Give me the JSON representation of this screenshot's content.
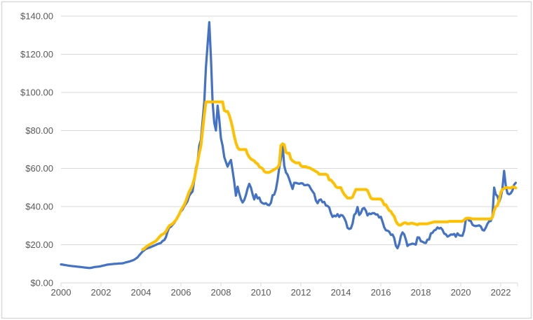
{
  "chart_data": {
    "type": "line",
    "title": "",
    "xlabel": "",
    "ylabel": "",
    "grid": "horizontal",
    "legend": "none",
    "x_axis": {
      "min": 2000,
      "max": 2022.84,
      "tick_years": [
        2000,
        2002,
        2004,
        2006,
        2008,
        2010,
        2012,
        2014,
        2016,
        2018,
        2020,
        2022
      ],
      "tick_labels": [
        "2000",
        "2002",
        "2004",
        "2006",
        "2008",
        "2010",
        "2012",
        "2014",
        "2016",
        "2018",
        "2020",
        "2022"
      ],
      "end_tick": true
    },
    "y_axis": {
      "min": 0,
      "max": 140,
      "tick_step": 20,
      "tick_values": [
        0,
        20,
        40,
        60,
        80,
        100,
        120,
        140
      ],
      "tick_labels": [
        "$0.00",
        "$20.00",
        "$40.00",
        "$60.00",
        "$80.00",
        "$100.00",
        "$120.00",
        "$140.00"
      ]
    },
    "colors": {
      "grid": "#D9D9D9",
      "axis": "#D9D9D9",
      "border": "#D9D9D9",
      "tick_label": "#595959",
      "blue_series": "#4472C4",
      "yellow_series": "#FFC000"
    },
    "series": [
      {
        "name": "blue-series",
        "color_key": "blue_series",
        "stroke_width": 3.25,
        "frequency": "monthly",
        "start_year": 2000,
        "start_month": 1,
        "values": [
          9.7,
          9.6,
          9.4,
          9.3,
          9.1,
          9.0,
          8.9,
          8.8,
          8.7,
          8.6,
          8.5,
          8.4,
          8.3,
          8.2,
          8.1,
          8.0,
          7.9,
          7.8,
          7.9,
          8.1,
          8.3,
          8.4,
          8.5,
          8.6,
          8.8,
          9.0,
          9.2,
          9.4,
          9.6,
          9.7,
          9.8,
          9.9,
          10.0,
          10.0,
          10.1,
          10.2,
          10.2,
          10.3,
          10.5,
          10.8,
          11.0,
          11.2,
          11.5,
          11.8,
          12.2,
          12.8,
          13.5,
          14.5,
          15.5,
          16.5,
          17.2,
          17.8,
          18.2,
          18.5,
          18.8,
          19.2,
          19.6,
          20.0,
          20.4,
          20.7,
          21.0,
          22.0,
          22.5,
          24.0,
          27.0,
          29.0,
          29.5,
          30.5,
          31.5,
          33.0,
          34.5,
          36.3,
          37.5,
          38.5,
          40.3,
          41.5,
          43.0,
          45.8,
          47.0,
          48.0,
          54.0,
          60.3,
          63.5,
          72.0,
          75.0,
          85.0,
          95.0,
          113.0,
          125.0,
          136.8,
          118.0,
          95.0,
          84.0,
          80.0,
          93.0,
          86.0,
          76.0,
          72.0,
          66.0,
          63.5,
          61.0,
          63.0,
          64.5,
          59.0,
          53.0,
          45.8,
          50.5,
          47.0,
          44.0,
          42.2,
          43.5,
          46.0,
          49.5,
          52.0,
          50.0,
          46.5,
          43.8,
          46.5,
          44.3,
          44.8,
          42.5,
          41.8,
          41.5,
          41.8,
          41.0,
          40.8,
          42.0,
          46.0,
          46.3,
          49.0,
          54.0,
          60.5,
          65.0,
          72.5,
          61.5,
          58.0,
          56.8,
          54.5,
          51.8,
          49.3,
          52.5,
          52.5,
          52.2,
          52.0,
          52.3,
          52.2,
          51.3,
          51.3,
          51.5,
          51.0,
          49.3,
          48.0,
          46.8,
          43.3,
          41.8,
          43.5,
          43.8,
          42.3,
          42.5,
          40.6,
          40.4,
          39.6,
          36.6,
          34.6,
          35.3,
          34.9,
          36.1,
          34.6,
          35.6,
          35.4,
          34.1,
          32.1,
          28.9,
          28.3,
          28.6,
          31.1,
          35.6,
          36.6,
          39.8,
          35.6,
          36.6,
          38.9,
          39.3,
          37.9,
          35.4,
          36.4,
          36.1,
          36.6,
          36.6,
          35.9,
          35.9,
          34.3,
          34.7,
          32.2,
          29.2,
          27.6,
          27.4,
          26.9,
          25.2,
          25.4,
          23.7,
          19.6,
          18.2,
          20.4,
          24.5,
          26.5,
          25.5,
          22.8,
          19.4,
          20.1,
          20.3,
          20.6,
          20.4,
          20.1,
          23.9,
          23.8,
          21.9,
          21.6,
          21.1,
          20.9,
          22.7,
          22.8,
          25.9,
          26.3,
          27.5,
          27.9,
          29.1,
          28.5,
          28.9,
          27.9,
          25.9,
          25.5,
          24.3,
          24.7,
          25.4,
          25.3,
          25.7,
          24.2,
          26.0,
          25.0,
          24.8,
          24.7,
          27.4,
          33.3,
          34.0,
          32.7,
          32.5,
          30.5,
          30.0,
          29.8,
          30.0,
          30.2,
          29.6,
          27.8,
          27.5,
          29.0,
          31.0,
          32.3,
          32.5,
          35.0,
          50.0,
          46.5,
          45.5,
          42.5,
          45.0,
          49.5,
          58.8,
          51.0,
          47.0,
          46.5,
          47.0,
          48.5,
          51.5,
          52.5
        ]
      },
      {
        "name": "yellow-series",
        "color_key": "yellow_series",
        "stroke_width": 4,
        "frequency": "monthly",
        "start_year": 2004,
        "start_month": 2,
        "values": [
          17.5,
          18.0,
          18.8,
          19.5,
          20.0,
          20.5,
          21.0,
          21.5,
          22.0,
          23.0,
          24.0,
          25.0,
          25.5,
          26.0,
          27.0,
          28.5,
          30.0,
          30.5,
          31.0,
          32.0,
          33.0,
          34.5,
          36.0,
          38.0,
          39.5,
          41.0,
          43.0,
          45.5,
          48.0,
          49.5,
          51.5,
          54.5,
          59.0,
          63.5,
          68.0,
          72.0,
          80.0,
          88.0,
          95.0,
          95.0,
          95.0,
          95.0,
          95.0,
          95.0,
          95.0,
          95.0,
          95.0,
          95.0,
          95.0,
          90.5,
          90.0,
          90.0,
          88.0,
          85.0,
          81.5,
          77.0,
          73.5,
          71.0,
          70.0,
          70.0,
          70.0,
          70.0,
          70.0,
          67.5,
          66.0,
          65.0,
          64.5,
          64.0,
          63.0,
          62.5,
          61.0,
          60.5,
          60.0,
          58.5,
          58.0,
          58.0,
          58.0,
          58.5,
          59.0,
          59.5,
          60.0,
          60.5,
          62.0,
          72.0,
          73.0,
          72.5,
          68.5,
          68.0,
          68.0,
          65.0,
          64.0,
          63.5,
          63.0,
          63.0,
          63.0,
          61.5,
          61.0,
          61.0,
          61.0,
          60.5,
          60.5,
          60.0,
          59.5,
          59.0,
          58.5,
          58.0,
          57.0,
          57.0,
          57.0,
          57.0,
          57.0,
          56.5,
          54.0,
          54.0,
          53.0,
          52.0,
          50.5,
          50.0,
          50.0,
          50.0,
          48.0,
          46.5,
          45.5,
          44.5,
          44.5,
          44.5,
          45.0,
          47.0,
          49.0,
          49.0,
          49.0,
          49.0,
          49.0,
          49.0,
          49.0,
          48.5,
          46.5,
          44.5,
          44.0,
          44.0,
          44.0,
          44.0,
          44.0,
          44.0,
          43.0,
          41.0,
          41.0,
          39.5,
          38.0,
          37.5,
          36.0,
          35.0,
          32.5,
          31.0,
          30.3,
          30.3,
          31.0,
          31.5,
          31.5,
          31.0,
          31.0,
          31.3,
          31.3,
          31.0,
          30.8,
          30.5,
          31.0,
          31.0,
          31.0,
          31.0,
          31.0,
          31.0,
          31.3,
          31.5,
          31.8,
          32.0,
          32.0,
          32.0,
          32.0,
          32.0,
          32.0,
          32.0,
          32.0,
          32.0,
          32.3,
          32.3,
          32.3,
          32.3,
          32.3,
          32.3,
          32.3,
          32.3,
          32.3,
          33.0,
          33.8,
          34.0,
          34.0,
          33.8,
          33.5,
          33.5,
          33.5,
          33.5,
          33.5,
          33.5,
          33.5,
          33.5,
          33.5,
          33.5,
          33.5,
          33.5,
          34.5,
          38.0,
          40.0,
          40.5,
          43.5,
          47.5,
          49.0,
          49.5,
          50.0,
          50.0,
          49.8,
          49.8,
          50.3,
          50.3,
          49.8
        ]
      }
    ]
  }
}
